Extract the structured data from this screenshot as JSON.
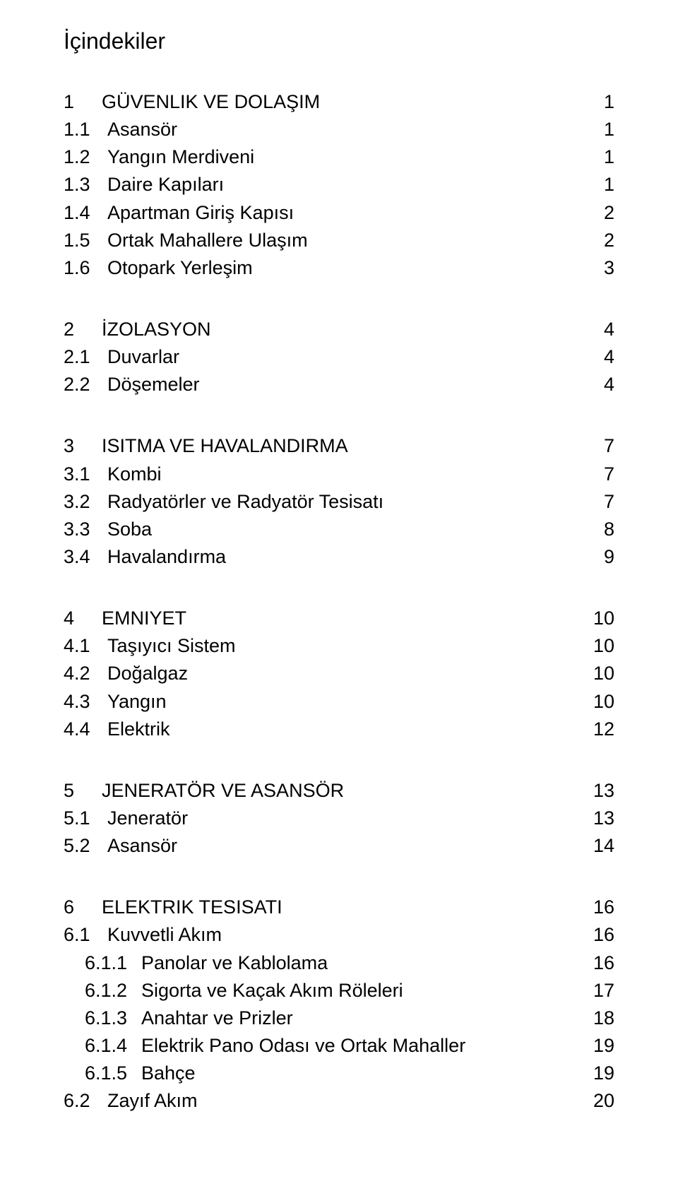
{
  "title": "İçindekiler",
  "typography": {
    "font_family": "Arial",
    "title_fontsize": 32,
    "row_fontsize": 27,
    "text_color": "#000000",
    "background_color": "#ffffff"
  },
  "sections": [
    {
      "num": "1",
      "label": "GÜVENLIK VE DOLAŞIM",
      "page": "1",
      "items": [
        {
          "num": "1.1",
          "label": "Asansör",
          "page": "1"
        },
        {
          "num": "1.2",
          "label": "Yangın Merdiveni",
          "page": "1"
        },
        {
          "num": "1.3",
          "label": "Daire Kapıları",
          "page": "1"
        },
        {
          "num": "1.4",
          "label": "Apartman Giriş Kapısı",
          "page": "2"
        },
        {
          "num": "1.5",
          "label": "Ortak Mahallere Ulaşım",
          "page": "2"
        },
        {
          "num": "1.6",
          "label": "Otopark Yerleşim",
          "page": "3"
        }
      ]
    },
    {
      "num": "2",
      "label": "İZOLASYON",
      "page": "4",
      "items": [
        {
          "num": "2.1",
          "label": "Duvarlar",
          "page": "4"
        },
        {
          "num": "2.2",
          "label": "Döşemeler",
          "page": "4"
        }
      ]
    },
    {
      "num": "3",
      "label": "ISITMA VE HAVALANDIRMA",
      "page": "7",
      "items": [
        {
          "num": "3.1",
          "label": "Kombi",
          "page": "7"
        },
        {
          "num": "3.2",
          "label": "Radyatörler ve Radyatör Tesisatı",
          "page": "7"
        },
        {
          "num": "3.3",
          "label": "Soba",
          "page": "8"
        },
        {
          "num": "3.4",
          "label": "Havalandırma",
          "page": "9"
        }
      ]
    },
    {
      "num": "4",
      "label": "EMNIYET",
      "page": "10",
      "items": [
        {
          "num": "4.1",
          "label": "Taşıyıcı Sistem",
          "page": "10"
        },
        {
          "num": "4.2",
          "label": "Doğalgaz",
          "page": "10"
        },
        {
          "num": "4.3",
          "label": "Yangın",
          "page": "10"
        },
        {
          "num": "4.4",
          "label": "Elektrik",
          "page": "12"
        }
      ]
    },
    {
      "num": "5",
      "label": "JENERATÖR VE ASANSÖR",
      "page": "13",
      "items": [
        {
          "num": "5.1",
          "label": "Jeneratör",
          "page": "13"
        },
        {
          "num": "5.2",
          "label": "Asansör",
          "page": "14"
        }
      ]
    },
    {
      "num": "6",
      "label": "ELEKTRIK TESISATI",
      "page": "16",
      "items": [
        {
          "num": "6.1",
          "label": "Kuvvetli Akım",
          "page": "16",
          "sub": [
            {
              "num": "6.1.1",
              "label": "Panolar ve Kablolama",
              "page": "16"
            },
            {
              "num": "6.1.2",
              "label": "Sigorta ve Kaçak Akım Röleleri",
              "page": "17"
            },
            {
              "num": "6.1.3",
              "label": "Anahtar ve Prizler",
              "page": "18"
            },
            {
              "num": "6.1.4",
              "label": "Elektrik Pano Odası ve Ortak Mahaller",
              "page": "19"
            },
            {
              "num": "6.1.5",
              "label": "Bahçe",
              "page": "19"
            }
          ]
        },
        {
          "num": "6.2",
          "label": "Zayıf Akım",
          "page": "20"
        }
      ]
    }
  ]
}
